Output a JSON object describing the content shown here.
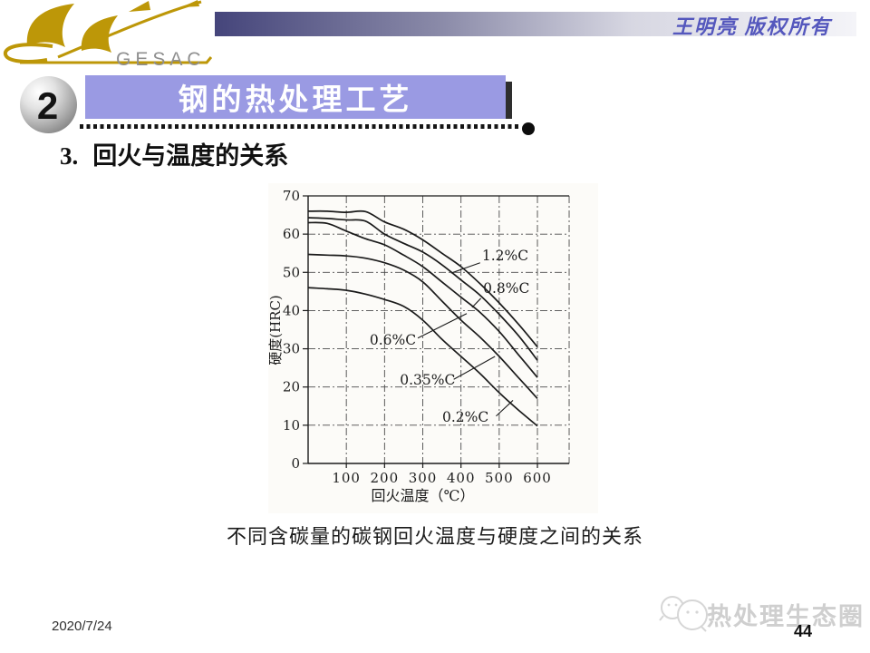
{
  "header": {
    "logo_text": "GESAC",
    "copyright": "王明亮 版权所有"
  },
  "section": {
    "number": "2",
    "banner_title": "钢的热处理工艺"
  },
  "heading": {
    "number": "3.",
    "text": "回火与温度的关系"
  },
  "caption": "不同含碳量的碳钢回火温度与硬度之间的关系",
  "footer": {
    "date": "2020/7/24",
    "page_number": "44",
    "watermark_text": "热处理生态圈",
    "watermark_icon": "chat-bubbles-icon"
  },
  "colors": {
    "banner": "#9a9ae3",
    "banner_shadow": "#2e2e2e",
    "copyright_text": "#5457bd",
    "logo_gold": "#bd9708",
    "logo_gray": "#8f8f8f",
    "watermark_gray": "#cfcfcf",
    "curve_ink": "#1a1a1a"
  },
  "chart_data": {
    "type": "line",
    "title": "",
    "xlabel": "回火温度（℃）",
    "ylabel": "硬度(HRC)",
    "xlim": [
      0,
      683
    ],
    "ylim": [
      0,
      70
    ],
    "x_ticks": [
      100,
      200,
      300,
      400,
      500,
      600
    ],
    "y_ticks": [
      0,
      10,
      20,
      30,
      40,
      50,
      60,
      70
    ],
    "grid": "dash-dot",
    "legend_position": "inline-labels",
    "x": [
      0,
      50,
      100,
      150,
      200,
      250,
      300,
      350,
      400,
      450,
      500,
      550,
      600
    ],
    "series": [
      {
        "name": "1.2%C",
        "values": [
          66,
          66,
          65.7,
          65.9,
          63.2,
          61.3,
          58.5,
          55,
          51.5,
          47,
          42,
          36.5,
          30.5
        ],
        "label": {
          "x": 455,
          "y": 53.2
        },
        "leader": [
          [
            450,
            52.5
          ],
          [
            374,
            49.8
          ]
        ]
      },
      {
        "name": "0.8%C",
        "values": [
          64.3,
          64.1,
          63.7,
          63.4,
          60,
          57.6,
          55.3,
          52,
          48,
          44,
          39,
          33.5,
          27
        ],
        "label": {
          "x": 458,
          "y": 44.6
        },
        "leader": [
          [
            452,
            43.2
          ],
          [
            429,
            40.8
          ]
        ]
      },
      {
        "name": "0.6%C",
        "values": [
          63,
          62.8,
          60.8,
          58.8,
          57.2,
          54.5,
          51.5,
          47.5,
          43.5,
          39.5,
          34.5,
          28.5,
          22.5
        ],
        "label": {
          "x": 161,
          "y": 31.1
        },
        "leader": [
          [
            287,
            32.8
          ],
          [
            415,
            39.2
          ]
        ]
      },
      {
        "name": "0.35%C",
        "values": [
          54.7,
          54.5,
          54.3,
          53.7,
          52.5,
          50.6,
          47.5,
          42.5,
          37.5,
          33,
          28,
          22.5,
          17
        ],
        "label": {
          "x": 240,
          "y": 20.6
        },
        "leader": [
          [
            381,
            22.0
          ],
          [
            489,
            28.0
          ]
        ]
      },
      {
        "name": "0.2%C",
        "values": [
          46,
          45.7,
          45.3,
          44.3,
          42.9,
          41.1,
          37.5,
          32.5,
          28,
          23.5,
          18.5,
          14,
          9.8
        ],
        "label": {
          "x": 351,
          "y": 10.9
        },
        "leader": [
          [
            492,
            12.4
          ],
          [
            536,
            16.5
          ]
        ]
      }
    ]
  }
}
